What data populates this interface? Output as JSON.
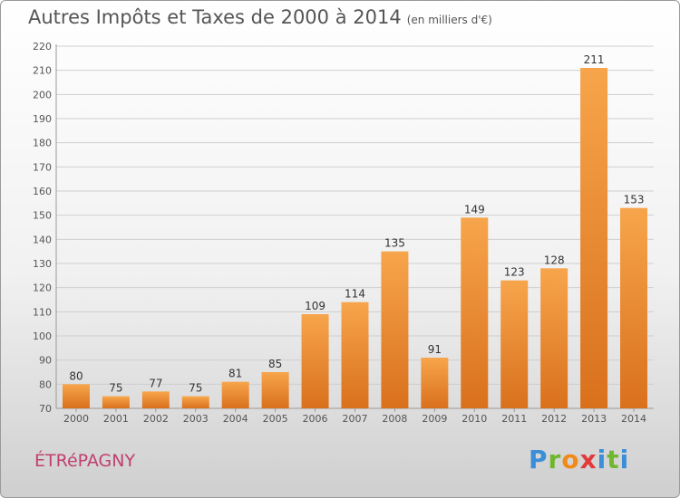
{
  "title": "Autres Impôts et Taxes de 2000 à 2014",
  "subtitle": "(en milliers d'€)",
  "town": "ÉTRéPAGNY",
  "logo": {
    "letters": [
      "P",
      "r",
      "o",
      "x",
      "i",
      "t",
      "i"
    ],
    "colors": [
      "#3a8fd8",
      "#6fb82e",
      "#f08a1a",
      "#e23a3a",
      "#3a8fd8",
      "#6fb82e",
      "#3a8fd8"
    ]
  },
  "colors": {
    "bar_top": "#f7a54c",
    "bar_bottom": "#d9701c",
    "grid": "#cfcfcf",
    "axis_text": "#555555"
  },
  "chart_data": {
    "type": "bar",
    "categories": [
      "2000",
      "2001",
      "2002",
      "2003",
      "2004",
      "2005",
      "2006",
      "2007",
      "2008",
      "2009",
      "2010",
      "2011",
      "2012",
      "2013",
      "2014"
    ],
    "values": [
      80,
      75,
      77,
      75,
      81,
      85,
      109,
      114,
      135,
      91,
      149,
      123,
      128,
      211,
      153
    ],
    "title": "Autres Impôts et Taxes de 2000 à 2014",
    "subtitle": "(en milliers d'€)",
    "ylim": [
      70,
      220
    ],
    "yticks": [
      70,
      80,
      90,
      100,
      110,
      120,
      130,
      140,
      150,
      160,
      170,
      180,
      190,
      200,
      210,
      220
    ],
    "grid": true
  }
}
